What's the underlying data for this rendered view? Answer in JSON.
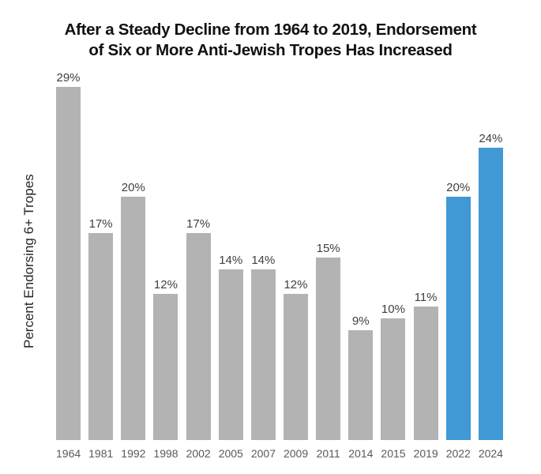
{
  "header": {
    "title_lines": [
      "After a Steady Decline from 1964 to 2019, Endorsement",
      "of Six or More Anti-Jewish Tropes Has Increased"
    ]
  },
  "y_axis": {
    "label": "Percent Endorsing 6+ Tropes"
  },
  "chart_data": {
    "type": "bar",
    "title": "After a Steady Decline from 1964 to 2019, Endorsement of Six or More Anti-Jewish Tropes Has Increased",
    "categories": [
      "1964",
      "1981",
      "1992",
      "1998",
      "2002",
      "2005",
      "2007",
      "2009",
      "2011",
      "2014",
      "2015",
      "2019",
      "2022",
      "2024"
    ],
    "values": [
      29,
      17,
      20,
      12,
      17,
      14,
      14,
      12,
      15,
      9,
      10,
      11,
      20,
      24
    ],
    "value_labels": [
      "29%",
      "17%",
      "20%",
      "12%",
      "17%",
      "14%",
      "14%",
      "12%",
      "15%",
      "9%",
      "10%",
      "11%",
      "20%",
      "24%"
    ],
    "unit": "%",
    "xlabel": "",
    "ylabel": "Percent Endorsing 6+ Tropes",
    "ylim": [
      0,
      30
    ],
    "grid": false,
    "legend": false,
    "highlighted_categories": [
      "2022",
      "2024"
    ],
    "colors": {
      "bar": "#b3b3b3",
      "highlight": "#4099d5",
      "value_label": "#404040",
      "tick_label": "#595959",
      "title": "#111111",
      "y_label": "#262626"
    }
  }
}
